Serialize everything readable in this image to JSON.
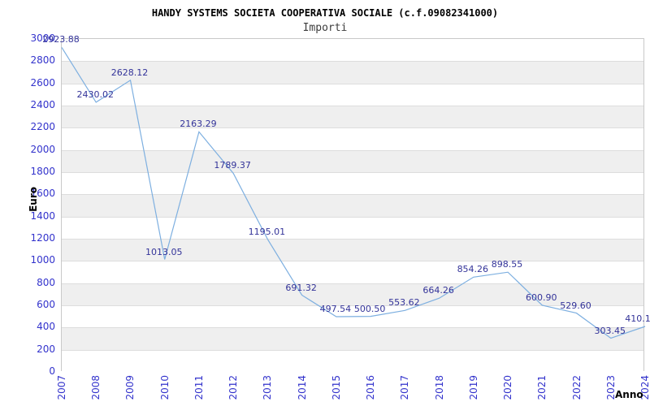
{
  "header": {
    "title": "HANDY SYSTEMS SOCIETA COOPERATIVA SOCIALE (c.f.09082341000)",
    "subtitle": "Importi"
  },
  "chart_data": {
    "type": "line",
    "title": "HANDY SYSTEMS SOCIETA COOPERATIVA SOCIALE (c.f.09082341000)",
    "subtitle": "Importi",
    "xlabel": "Anno",
    "ylabel": "Euro",
    "x": [
      2007,
      2008,
      2009,
      2010,
      2011,
      2012,
      2013,
      2014,
      2015,
      2016,
      2017,
      2018,
      2019,
      2020,
      2021,
      2022,
      2023,
      2024
    ],
    "series": [
      {
        "name": "Importi",
        "values": [
          2923.88,
          2430.02,
          2628.12,
          1013.05,
          2163.29,
          1789.37,
          1195.01,
          691.32,
          497.54,
          500.5,
          553.62,
          664.26,
          854.26,
          898.55,
          600.9,
          529.6,
          303.45,
          410.1
        ]
      }
    ],
    "point_labels": [
      "2923.88",
      "2430.02",
      "2628.12",
      "1013.05",
      "2163.29",
      "1789.37",
      "1195.01",
      "691.32",
      "497.54",
      "500.50",
      "553.62",
      "664.26",
      "854.26",
      "898.55",
      "600.90",
      "529.60",
      "303.45",
      "410.1"
    ],
    "ylim": [
      0,
      3000
    ],
    "ytick_step": 200,
    "grid": "horizontal-only, alternating shaded bands",
    "legend": "none",
    "colors": {
      "line": "#7dafe0",
      "tick_labels": "#3333cc",
      "point_labels": "#333399",
      "band_gray": "#efefef",
      "gridline": "#dddddd",
      "plot_border": "#c9c9c9"
    }
  }
}
